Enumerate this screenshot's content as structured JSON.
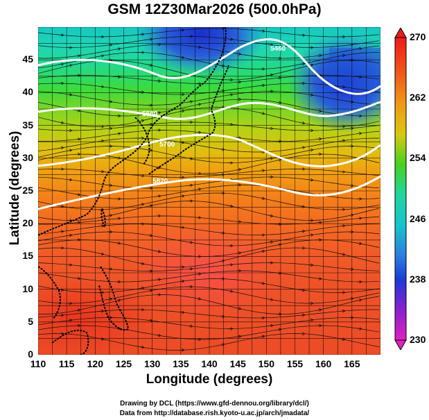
{
  "title": "GSM 12Z30Mar2026 (500.0hPa)",
  "chart_data": {
    "type": "heatmap",
    "title": "GSM 12Z30Mar2026 (500.0hPa)",
    "xlabel": "Longitude (degrees)",
    "ylabel": "Latitude (degrees)",
    "xlim": [
      110,
      170
    ],
    "ylim": [
      0,
      50
    ],
    "x_ticks": [
      "110",
      "115",
      "120",
      "125",
      "130",
      "135",
      "140",
      "145",
      "150",
      "155",
      "160",
      "165"
    ],
    "y_ticks": [
      "0",
      "5",
      "10",
      "15",
      "20",
      "25",
      "30",
      "35",
      "40",
      "45"
    ],
    "colorbar": {
      "min": 230,
      "max": 270,
      "labels": [
        "270",
        "262",
        "254",
        "246",
        "238",
        "230"
      ],
      "colors": [
        "#ee1a1a",
        "#f08a1a",
        "#45d21e",
        "#15c4cc",
        "#1a3ad8",
        "#d01fd0"
      ]
    },
    "low_centers": [
      {
        "lon": 139.5,
        "lat": 49.5
      },
      {
        "lon": 162,
        "lat": 43
      }
    ],
    "contour_labels": [
      "5460",
      "5580",
      "5700",
      "5820"
    ]
  },
  "credits": {
    "line1": "Drawing by DCL (https://www.gfd-dennou.org/library/dcl/)",
    "line2": "Data from http://database.rish.kyoto-u.ac.jp/arch/jmadata/"
  }
}
